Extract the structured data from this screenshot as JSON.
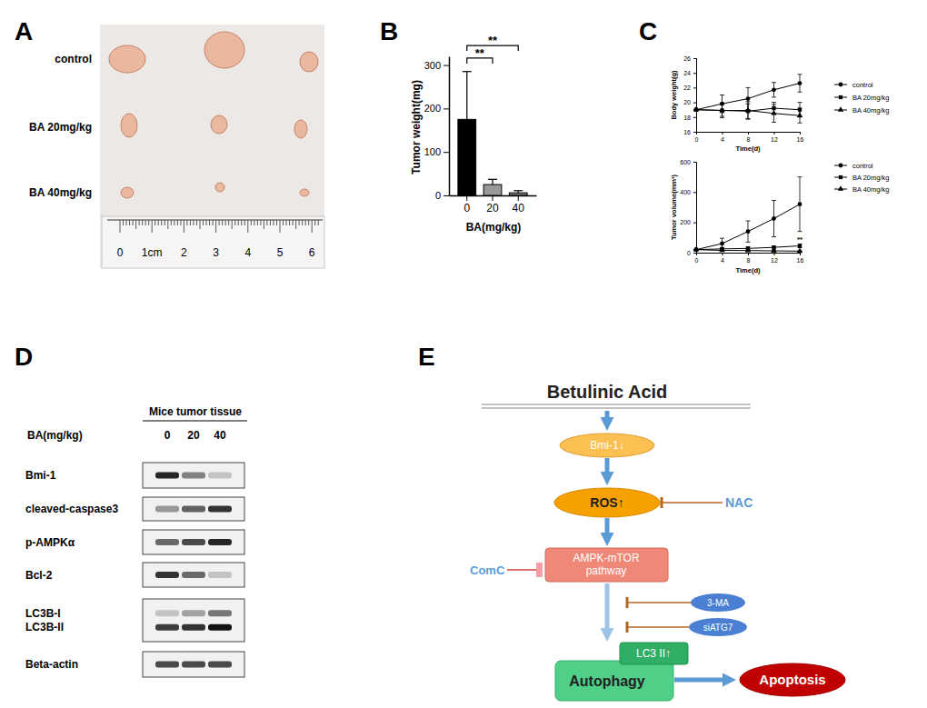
{
  "panel_labels": [
    "A",
    "B",
    "C",
    "D",
    "E"
  ],
  "photo": {
    "rows": [
      "control",
      "BA 20mg/kg",
      "BA 40mg/kg"
    ],
    "ruler_labels": [
      "0",
      "1cm",
      "2",
      "3",
      "4",
      "5",
      "6"
    ]
  },
  "chart_data": [
    {
      "type": "bar",
      "categories": [
        "0",
        "20",
        "40"
      ],
      "values": [
        175,
        25,
        6
      ],
      "errors": [
        110,
        12,
        5
      ],
      "colors": [
        "#000000",
        "#999999",
        "#777777"
      ],
      "ylim": [
        0,
        320
      ],
      "yticks": [
        0,
        100,
        200,
        300
      ],
      "y_label": "Tumor weight(mg)",
      "x_label": "BA(mg/kg)",
      "significance": [
        {
          "groups": [
            "0",
            "20"
          ],
          "y": 316,
          "label": "**"
        },
        {
          "groups": [
            "0",
            "40"
          ],
          "y": 345,
          "label": "**"
        }
      ]
    },
    {
      "type": "line",
      "x": [
        0,
        4,
        8,
        12,
        16
      ],
      "xlim": [
        0,
        16
      ],
      "xticks": [
        0,
        4,
        8,
        12,
        16
      ],
      "ylim": [
        16,
        26
      ],
      "yticks": [
        16,
        18,
        20,
        22,
        24,
        26
      ],
      "x_label": "Time(d)",
      "y_label": "Body weight(g)",
      "legend": "right",
      "series": [
        {
          "name": "control",
          "color": "#000000",
          "marker": "circle",
          "values": [
            19.0,
            19.8,
            20.5,
            21.7,
            22.6
          ],
          "errors": [
            0,
            1.2,
            1.5,
            1.0,
            1.2
          ]
        },
        {
          "name": "BA 20mg/kg",
          "color": "#000000",
          "marker": "square",
          "values": [
            19.0,
            18.9,
            18.8,
            19.2,
            19.0
          ],
          "errors": [
            0,
            1.0,
            1.0,
            0.8,
            1.0
          ]
        },
        {
          "name": "BA 40mg/kg",
          "color": "#000000",
          "marker": "triangle",
          "values": [
            19.0,
            18.9,
            18.9,
            18.5,
            18.2
          ],
          "errors": [
            0,
            0.8,
            1.2,
            1.2,
            1.0
          ]
        }
      ]
    },
    {
      "type": "line",
      "x": [
        0,
        4,
        8,
        12,
        16
      ],
      "xlim": [
        0,
        16
      ],
      "xticks": [
        0,
        4,
        8,
        12,
        16
      ],
      "ylim": [
        0,
        600
      ],
      "yticks": [
        0,
        200,
        400,
        600
      ],
      "x_label": "Time(d)",
      "y_label": "Tumor volume(mm³)",
      "legend": "right",
      "series": [
        {
          "name": "control",
          "color": "#000000",
          "marker": "circle",
          "values": [
            20,
            60,
            140,
            225,
            320
          ],
          "errors": [
            0,
            35,
            70,
            120,
            180
          ]
        },
        {
          "name": "BA 20mg/kg",
          "color": "#000000",
          "marker": "square",
          "values": [
            20,
            25,
            28,
            35,
            45
          ],
          "errors": [
            0,
            8,
            10,
            10,
            12
          ]
        },
        {
          "name": "BA 40mg/kg",
          "color": "#000000",
          "marker": "triangle",
          "values": [
            20,
            15,
            14,
            12,
            10
          ],
          "errors": [
            0,
            5,
            5,
            5,
            4
          ]
        }
      ],
      "annotations": [
        {
          "text": "**",
          "x": 16,
          "y": 75
        }
      ]
    }
  ],
  "blot": {
    "title": "Mice tumor tissue",
    "axis_label": "BA(mg/kg)",
    "lanes": [
      "0",
      "20",
      "40"
    ],
    "panels": [
      {
        "rows": [
          {
            "label": "Bmi-1",
            "intensity": [
              0.9,
              0.5,
              0.2
            ]
          }
        ]
      },
      {
        "rows": [
          {
            "label": "cleaved-caspase3",
            "intensity": [
              0.4,
              0.65,
              0.85
            ]
          }
        ]
      },
      {
        "rows": [
          {
            "label": "p-AMPKα",
            "intensity": [
              0.6,
              0.75,
              0.9
            ]
          }
        ]
      },
      {
        "rows": [
          {
            "label": "Bcl-2",
            "intensity": [
              0.85,
              0.6,
              0.2
            ]
          }
        ]
      },
      {
        "rows": [
          {
            "label": "LC3B-I",
            "intensity": [
              0.2,
              0.35,
              0.55
            ]
          },
          {
            "label": "LC3B-II",
            "intensity": [
              0.8,
              0.85,
              1.0
            ]
          }
        ]
      },
      {
        "rows": [
          {
            "label": "Beta-actin",
            "intensity": [
              0.75,
              0.75,
              0.75
            ]
          }
        ]
      }
    ]
  },
  "diagram": {
    "title": "Betulinic Acid",
    "nodes": [
      "Bmi-1↓",
      "ROS↑",
      "AMPK-mTOR pathway",
      "LC3 II↑",
      "Autophagy",
      "Apoptosis"
    ],
    "inhibitors": [
      "NAC",
      "ComC",
      "3-MA",
      "siATG7"
    ]
  }
}
